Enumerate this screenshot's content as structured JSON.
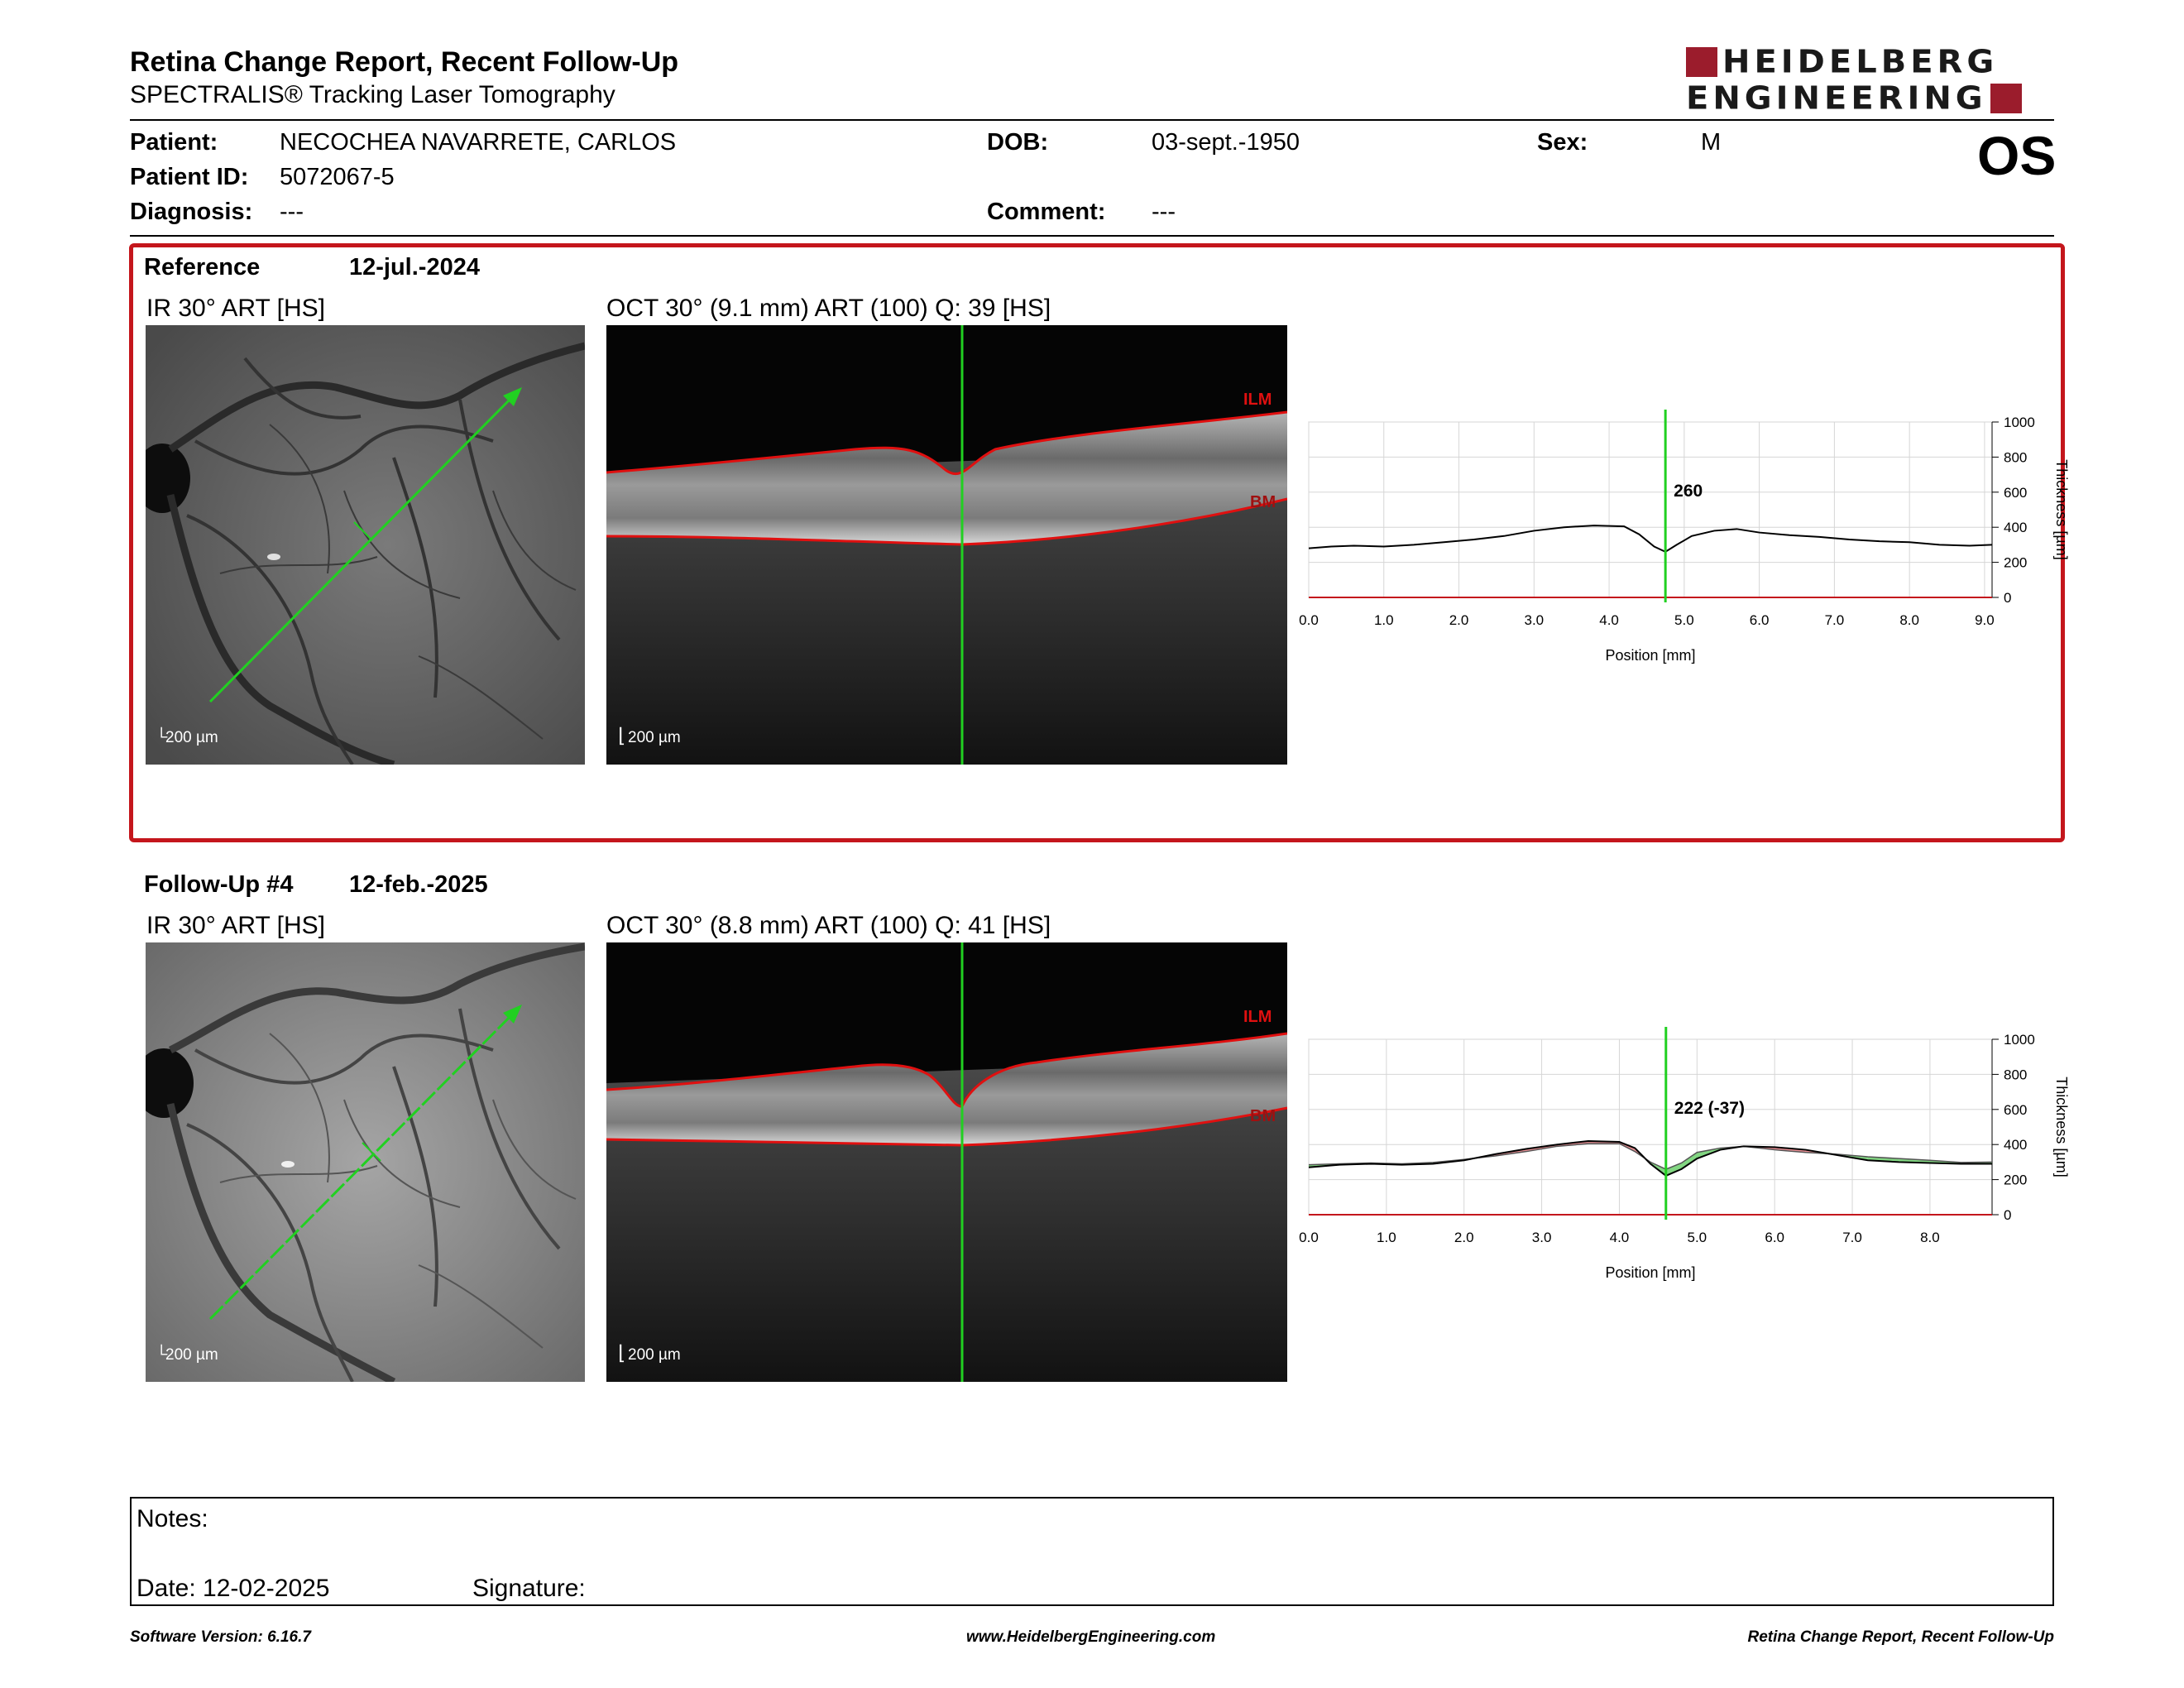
{
  "header": {
    "title": "Retina Change Report, Recent Follow-Up",
    "subtitle": "SPECTRALIS® Tracking Laser Tomography",
    "logo_line1": "HEIDELBERG",
    "logo_line2": "ENGINEERING",
    "brand_color": "#9b1c2c"
  },
  "patient": {
    "patient_label": "Patient:",
    "patient_name": "NECOCHEA NAVARRETE, CARLOS",
    "id_label": "Patient ID:",
    "id_value": "5072067-5",
    "diagnosis_label": "Diagnosis:",
    "diagnosis_value": "---",
    "dob_label": "DOB:",
    "dob_value": "03-sept.-1950",
    "comment_label": "Comment:",
    "comment_value": "---",
    "sex_label": "Sex:",
    "sex_value": "M",
    "eye": "OS"
  },
  "reference": {
    "label": "Reference",
    "date": "12-jul.-2024",
    "ir_label": "IR 30° ART [HS]",
    "oct_label": "OCT 30° (9.1 mm) ART (100) Q: 39 [HS]",
    "scale": "200 µm",
    "ilm": "ILM",
    "bm": "BM",
    "highlight_color": "#c4161c"
  },
  "followup": {
    "label": "Follow-Up #4",
    "date": "12-feb.-2025",
    "ir_label": "IR 30° ART [HS]",
    "oct_label": "OCT 30° (8.8 mm) ART (100) Q: 41 [HS]",
    "scale": "200 µm",
    "ilm": "ILM",
    "bm": "BM"
  },
  "chart_data": [
    {
      "type": "line",
      "xlabel": "Position [mm]",
      "ylabel": "Thickness [µm]",
      "xlim": [
        0,
        9.1
      ],
      "ylim": [
        0,
        1000
      ],
      "x_ticks": [
        "0.0",
        "1.0",
        "2.0",
        "3.0",
        "4.0",
        "5.0",
        "6.0",
        "7.0",
        "8.0",
        "9.0"
      ],
      "y_ticks": [
        "0",
        "200",
        "400",
        "600",
        "800",
        "1000"
      ],
      "cursor_x": 4.75,
      "cursor_label": "260",
      "series": [
        {
          "x": [
            0,
            0.3,
            0.6,
            1.0,
            1.4,
            1.8,
            2.2,
            2.6,
            3.0,
            3.4,
            3.8,
            4.2,
            4.4,
            4.6,
            4.75,
            4.9,
            5.1,
            5.4,
            5.7,
            6.0,
            6.4,
            6.8,
            7.2,
            7.6,
            8.0,
            8.4,
            8.8,
            9.1
          ],
          "values": [
            280,
            290,
            295,
            290,
            300,
            315,
            330,
            350,
            380,
            400,
            410,
            405,
            360,
            290,
            260,
            300,
            350,
            380,
            390,
            370,
            355,
            345,
            330,
            320,
            315,
            300,
            295,
            300
          ]
        }
      ]
    },
    {
      "type": "area",
      "xlabel": "Position [mm]",
      "ylabel": "Thickness [µm]",
      "xlim": [
        0,
        8.8
      ],
      "ylim": [
        0,
        1000
      ],
      "x_ticks": [
        "0.0",
        "1.0",
        "2.0",
        "3.0",
        "4.0",
        "5.0",
        "6.0",
        "7.0",
        "8.0"
      ],
      "y_ticks": [
        "0",
        "200",
        "400",
        "600",
        "800",
        "1000"
      ],
      "cursor_x": 4.6,
      "cursor_label": "222 (-37)",
      "gain_color": "#6ccf6c",
      "loss_color": "#e87a80",
      "series": [
        {
          "x": [
            0,
            0.4,
            0.8,
            1.2,
            1.6,
            2.0,
            2.4,
            2.8,
            3.2,
            3.6,
            4.0,
            4.2,
            4.4,
            4.6,
            4.8,
            5.0,
            5.3,
            5.6,
            6.0,
            6.4,
            6.8,
            7.2,
            7.6,
            8.0,
            8.4,
            8.8
          ],
          "values": [
            270,
            285,
            290,
            285,
            290,
            310,
            345,
            375,
            400,
            420,
            415,
            380,
            290,
            222,
            260,
            320,
            370,
            390,
            385,
            370,
            340,
            310,
            300,
            295,
            290,
            290
          ]
        },
        {
          "x": [
            0,
            0.4,
            0.8,
            1.2,
            1.6,
            2.0,
            2.4,
            2.8,
            3.2,
            3.6,
            4.0,
            4.2,
            4.4,
            4.6,
            4.8,
            5.0,
            5.3,
            5.6,
            6.0,
            6.4,
            6.8,
            7.2,
            7.6,
            8.0,
            8.4,
            8.8
          ],
          "values": [
            285,
            290,
            295,
            290,
            298,
            315,
            335,
            360,
            390,
            405,
            405,
            360,
            300,
            259,
            295,
            355,
            380,
            390,
            370,
            355,
            345,
            330,
            320,
            310,
            298,
            300
          ]
        }
      ]
    }
  ],
  "notes": {
    "notes_label": "Notes:",
    "date_label": "Date: 12-02-2025",
    "signature_label": "Signature:"
  },
  "footer": {
    "left": "Software Version: 6.16.7",
    "center": "www.HeidelbergEngineering.com",
    "right": "Retina Change Report, Recent Follow-Up"
  }
}
